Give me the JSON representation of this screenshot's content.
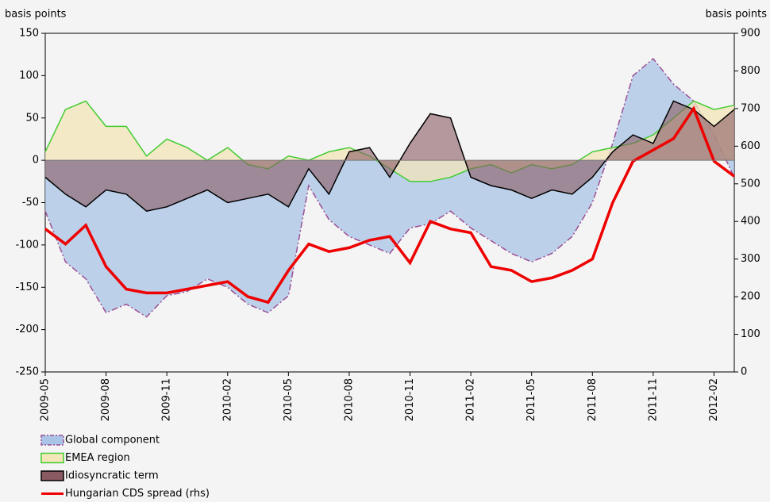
{
  "chart_data": {
    "type": "area",
    "y_label": "basis points",
    "y2_label": "basis points",
    "x": [
      "2009-05",
      "2009-06",
      "2009-07",
      "2009-08",
      "2009-09",
      "2009-10",
      "2009-11",
      "2009-12",
      "2010-01",
      "2010-02",
      "2010-03",
      "2010-04",
      "2010-05",
      "2010-06",
      "2010-07",
      "2010-08",
      "2010-09",
      "2010-10",
      "2010-11",
      "2010-12",
      "2011-01",
      "2011-02",
      "2011-03",
      "2011-04",
      "2011-05",
      "2011-06",
      "2011-07",
      "2011-08",
      "2011-09",
      "2011-10",
      "2011-11",
      "2011-12",
      "2012-01",
      "2012-02",
      "2012-03"
    ],
    "xlim": [
      "2009-05",
      "2012-03"
    ],
    "xticks": [
      "2009-05",
      "2009-08",
      "2009-11",
      "2010-02",
      "2010-05",
      "2010-08",
      "2010-11",
      "2011-02",
      "2011-05",
      "2011-08",
      "2011-11",
      "2012-02"
    ],
    "ylim": [
      -250,
      150
    ],
    "yticks": [
      -250,
      -200,
      -150,
      -100,
      -50,
      0,
      50,
      100,
      150
    ],
    "y2lim": [
      0,
      900
    ],
    "y2ticks": [
      0,
      100,
      200,
      300,
      400,
      500,
      600,
      700,
      800,
      900
    ],
    "series": [
      {
        "name": "Global component",
        "type": "area",
        "color": "#9b4f96",
        "fill": "#a9c4e6",
        "values": [
          -60,
          -120,
          -140,
          -180,
          -170,
          -185,
          -160,
          -155,
          -140,
          -150,
          -170,
          -180,
          -160,
          -30,
          -70,
          -90,
          -100,
          -110,
          -80,
          -75,
          -60,
          -80,
          -95,
          -110,
          -120,
          -110,
          -90,
          -50,
          20,
          100,
          120,
          90,
          70,
          30,
          -20
        ]
      },
      {
        "name": "EMEA region",
        "type": "area",
        "color": "#44cc33",
        "fill": "#f3e6b8",
        "values": [
          10,
          60,
          70,
          40,
          40,
          5,
          25,
          15,
          0,
          15,
          -5,
          -10,
          5,
          0,
          10,
          15,
          5,
          -10,
          -25,
          -25,
          -20,
          -10,
          -5,
          -15,
          -5,
          -10,
          -5,
          10,
          15,
          20,
          30,
          50,
          70,
          60,
          65
        ]
      },
      {
        "name": "Idiosyncratic term",
        "type": "area",
        "color": "#000000",
        "fill": "#8a5a62",
        "values": [
          -20,
          -40,
          -55,
          -35,
          -40,
          -60,
          -55,
          -45,
          -35,
          -50,
          -45,
          -40,
          -55,
          -10,
          -40,
          10,
          15,
          -20,
          20,
          55,
          50,
          -20,
          -30,
          -35,
          -45,
          -35,
          -40,
          -20,
          10,
          30,
          20,
          70,
          60,
          40,
          60
        ]
      },
      {
        "name": "Hungarian CDS spread (rhs)",
        "type": "line",
        "axis": "y2",
        "color": "#ee0000",
        "values": [
          380,
          340,
          390,
          280,
          220,
          210,
          210,
          220,
          230,
          240,
          200,
          185,
          270,
          340,
          320,
          330,
          350,
          360,
          290,
          400,
          380,
          370,
          280,
          270,
          240,
          250,
          270,
          300,
          450,
          560,
          590,
          620,
          700,
          560,
          520
        ]
      }
    ]
  }
}
